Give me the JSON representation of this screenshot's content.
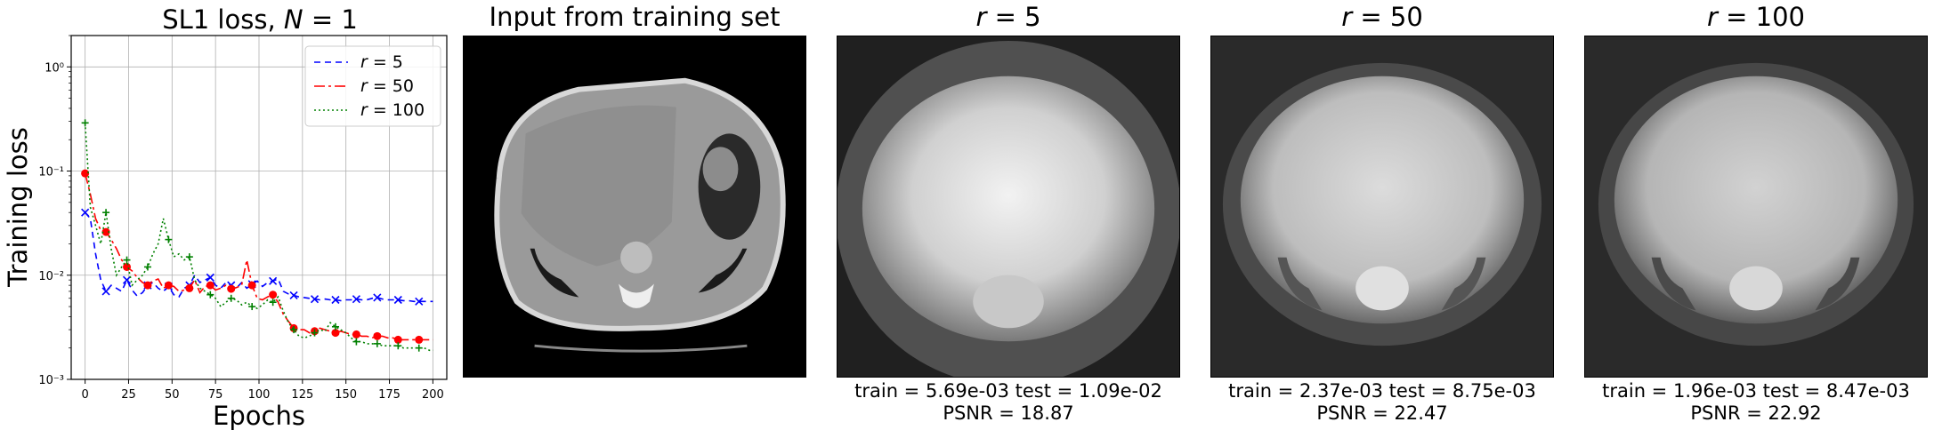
{
  "chart_data": {
    "type": "line",
    "title": "SL1 loss, N = 1",
    "xlabel": "Epochs",
    "ylabel": "Training loss",
    "yscale": "log",
    "xlim": [
      -8,
      208
    ],
    "ylim": [
      0.001,
      2
    ],
    "x_ticks": [
      0,
      25,
      50,
      75,
      100,
      125,
      150,
      175,
      200
    ],
    "y_ticks": [
      0.001,
      0.01,
      0.1,
      1
    ],
    "y_tick_labels": [
      "10⁻³",
      "10⁻²",
      "10⁻¹",
      "10⁰"
    ],
    "grid": true,
    "legend_position": "top-right",
    "series": [
      {
        "name": "r = 5",
        "color": "#0000ff",
        "dash": "7,5",
        "marker": "x",
        "x": [
          0,
          3,
          6,
          9,
          12,
          15,
          18,
          21,
          24,
          27,
          30,
          33,
          36,
          39,
          42,
          45,
          48,
          51,
          54,
          57,
          60,
          63,
          66,
          69,
          72,
          75,
          78,
          81,
          84,
          87,
          90,
          93,
          96,
          99,
          102,
          105,
          108,
          111,
          114,
          117,
          120,
          123,
          126,
          129,
          132,
          135,
          138,
          141,
          144,
          147,
          150,
          153,
          156,
          159,
          162,
          165,
          168,
          171,
          174,
          177,
          180,
          183,
          186,
          189,
          192,
          195,
          198,
          200
        ],
        "y": [
          0.04,
          0.035,
          0.016,
          0.009,
          0.007,
          0.008,
          0.0075,
          0.007,
          0.009,
          0.0072,
          0.0063,
          0.0068,
          0.008,
          0.0085,
          0.0075,
          0.007,
          0.0078,
          0.0065,
          0.0062,
          0.0075,
          0.008,
          0.01,
          0.0085,
          0.009,
          0.0095,
          0.008,
          0.0075,
          0.0085,
          0.008,
          0.0075,
          0.0085,
          0.0075,
          0.0082,
          0.0088,
          0.0078,
          0.0085,
          0.0088,
          0.0092,
          0.007,
          0.0066,
          0.0064,
          0.0062,
          0.0061,
          0.006,
          0.0059,
          0.0058,
          0.0059,
          0.0058,
          0.0058,
          0.0057,
          0.0058,
          0.0058,
          0.0059,
          0.0058,
          0.0058,
          0.006,
          0.0061,
          0.0059,
          0.0058,
          0.0058,
          0.0058,
          0.0057,
          0.0057,
          0.0056,
          0.0056,
          0.0056,
          0.0056,
          0.0056
        ]
      },
      {
        "name": "r = 50",
        "color": "#ff0000",
        "dash": "12,4,3,4",
        "marker": "o",
        "x": [
          0,
          3,
          6,
          9,
          12,
          15,
          18,
          21,
          24,
          27,
          30,
          33,
          36,
          39,
          42,
          45,
          48,
          51,
          54,
          57,
          60,
          63,
          66,
          69,
          72,
          75,
          78,
          81,
          84,
          87,
          90,
          93,
          96,
          99,
          102,
          105,
          108,
          111,
          114,
          117,
          120,
          123,
          126,
          129,
          132,
          135,
          138,
          141,
          144,
          147,
          150,
          153,
          156,
          159,
          162,
          165,
          168,
          171,
          174,
          177,
          180,
          183,
          186,
          189,
          192,
          195,
          198,
          200
        ],
        "y": [
          0.095,
          0.06,
          0.035,
          0.027,
          0.026,
          0.022,
          0.018,
          0.014,
          0.012,
          0.011,
          0.0095,
          0.0085,
          0.008,
          0.0088,
          0.0092,
          0.0075,
          0.008,
          0.0078,
          0.007,
          0.0072,
          0.0075,
          0.009,
          0.0068,
          0.0078,
          0.008,
          0.0072,
          0.0075,
          0.008,
          0.0074,
          0.0076,
          0.008,
          0.014,
          0.008,
          0.006,
          0.0058,
          0.0062,
          0.0065,
          0.0055,
          0.0042,
          0.0036,
          0.0031,
          0.003,
          0.003,
          0.0028,
          0.0029,
          0.0031,
          0.003,
          0.0029,
          0.0028,
          0.0029,
          0.0028,
          0.0027,
          0.0027,
          0.0026,
          0.0026,
          0.0025,
          0.0026,
          0.0026,
          0.0025,
          0.0025,
          0.0024,
          0.0024,
          0.0024,
          0.0024,
          0.0024,
          0.0024,
          0.0024,
          0.0024
        ]
      },
      {
        "name": "r = 100",
        "color": "#008000",
        "dash": "2,3",
        "marker": "+",
        "x": [
          0,
          3,
          6,
          9,
          12,
          15,
          18,
          21,
          24,
          27,
          30,
          33,
          36,
          39,
          42,
          45,
          48,
          51,
          54,
          57,
          60,
          63,
          66,
          69,
          72,
          75,
          78,
          81,
          84,
          87,
          90,
          93,
          96,
          99,
          102,
          105,
          108,
          111,
          114,
          117,
          120,
          123,
          126,
          129,
          132,
          135,
          138,
          141,
          144,
          147,
          150,
          153,
          156,
          159,
          162,
          165,
          168,
          171,
          174,
          177,
          180,
          183,
          186,
          189,
          192,
          195,
          198,
          200
        ],
        "y": [
          0.29,
          0.045,
          0.03,
          0.02,
          0.04,
          0.018,
          0.01,
          0.012,
          0.014,
          0.008,
          0.009,
          0.01,
          0.012,
          0.016,
          0.02,
          0.035,
          0.022,
          0.015,
          0.016,
          0.014,
          0.015,
          0.009,
          0.0075,
          0.007,
          0.0065,
          0.006,
          0.005,
          0.0055,
          0.006,
          0.0058,
          0.0052,
          0.0055,
          0.005,
          0.0048,
          0.0052,
          0.0058,
          0.0055,
          0.0062,
          0.0045,
          0.0035,
          0.003,
          0.0026,
          0.0025,
          0.0026,
          0.0028,
          0.003,
          0.0029,
          0.0035,
          0.0032,
          0.003,
          0.0028,
          0.0025,
          0.0023,
          0.0023,
          0.0022,
          0.0022,
          0.0022,
          0.0021,
          0.0021,
          0.0021,
          0.0021,
          0.002,
          0.002,
          0.002,
          0.002,
          0.002,
          0.0019,
          0.0019
        ]
      }
    ]
  },
  "panels": [
    {
      "title": "Input from training set"
    },
    {
      "title": "r = 5",
      "stats_line1": "train = 5.69e-03   test = 1.09e-02",
      "stats_line2": "PSNR = 18.87"
    },
    {
      "title": "r = 50",
      "stats_line1": "train = 2.37e-03   test = 8.75e-03",
      "stats_line2": "PSNR = 22.47"
    },
    {
      "title": "r = 100",
      "stats_line1": "train = 1.96e-03   test = 8.47e-03",
      "stats_line2": "PSNR = 22.92"
    }
  ]
}
